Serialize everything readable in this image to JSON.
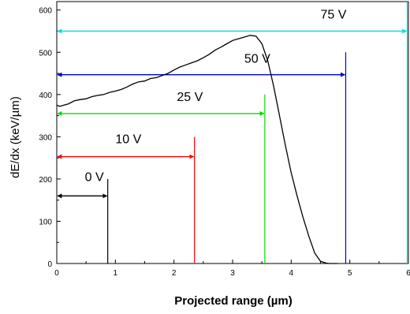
{
  "chart_data": {
    "type": "line",
    "title": "",
    "xlabel": "Projected range (µm)",
    "ylabel": "dE/dx (keV/µm)",
    "xlim": [
      0,
      6
    ],
    "ylim": [
      0,
      620
    ],
    "xticks": [
      0,
      1,
      2,
      3,
      4,
      5,
      6
    ],
    "yticks": [
      0,
      100,
      200,
      300,
      400,
      500,
      600
    ],
    "grid": false,
    "curve": {
      "color": "#000000",
      "x": [
        0,
        0.05,
        0.1,
        0.2,
        0.3,
        0.4,
        0.5,
        0.6,
        0.7,
        0.8,
        0.9,
        1.0,
        1.1,
        1.2,
        1.3,
        1.4,
        1.5,
        1.6,
        1.7,
        1.8,
        1.9,
        2.0,
        2.1,
        2.2,
        2.3,
        2.4,
        2.5,
        2.6,
        2.7,
        2.8,
        2.9,
        3.0,
        3.1,
        3.2,
        3.3,
        3.4,
        3.5,
        3.6,
        3.7,
        3.8,
        3.9,
        4.0,
        4.1,
        4.2,
        4.3,
        4.4,
        4.5,
        4.6,
        4.65,
        4.7,
        4.8
      ],
      "y": [
        375,
        372,
        374,
        378,
        385,
        388,
        390,
        395,
        398,
        400,
        405,
        408,
        412,
        418,
        425,
        430,
        432,
        438,
        440,
        445,
        450,
        458,
        465,
        470,
        475,
        480,
        487,
        495,
        505,
        512,
        520,
        528,
        532,
        536,
        540,
        538,
        520,
        480,
        420,
        350,
        280,
        215,
        160,
        110,
        65,
        25,
        5,
        1,
        0,
        0,
        0
      ]
    },
    "ranges": [
      {
        "label": "0 V",
        "end_x": 0.87,
        "line_top_y": 200,
        "arrow_y": 160,
        "label_x": 0.48,
        "label_y": 195,
        "color": "#000000"
      },
      {
        "label": "10 V",
        "end_x": 2.35,
        "line_top_y": 300,
        "arrow_y": 253,
        "label_x": 1.0,
        "label_y": 285,
        "color": "#ff0000"
      },
      {
        "label": "25 V",
        "end_x": 3.55,
        "line_top_y": 400,
        "arrow_y": 355,
        "label_x": 2.05,
        "label_y": 385,
        "color": "#00dd00"
      },
      {
        "label": "50 V",
        "end_x": 4.93,
        "line_top_y": 500,
        "arrow_y": 447,
        "label_x": 3.2,
        "label_y": 475,
        "color": "#0000cc"
      },
      {
        "label": "75 V",
        "end_x": 5.98,
        "line_top_y": 620,
        "arrow_y": 550,
        "label_x": 4.5,
        "label_y": 580,
        "color": "#00dddd"
      }
    ]
  }
}
